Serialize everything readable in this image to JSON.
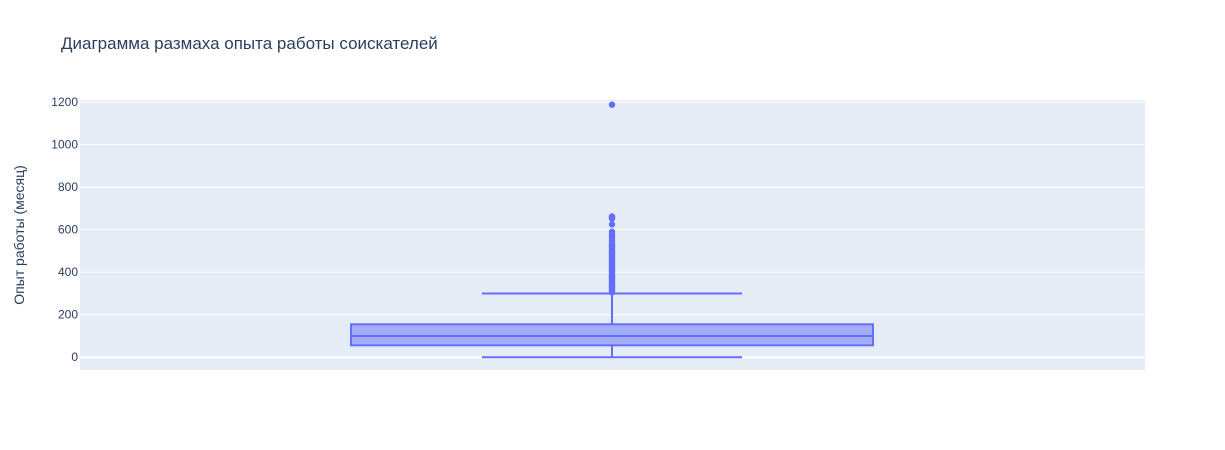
{
  "chart_data": {
    "type": "box",
    "title": "Диаграмма размаха опыта работы соискателей",
    "xlabel": "",
    "ylabel": "Опыт работы (месяц)",
    "ylim": [
      -60,
      1210
    ],
    "yticks": [
      0,
      200,
      400,
      600,
      800,
      1000,
      1200
    ],
    "grid": true,
    "colors": {
      "box": "#636efa",
      "box_fill": "rgba(99,110,250,0.5)",
      "plot_bg": "#e5ecf6",
      "grid": "#ffffff"
    },
    "box": {
      "min": 0,
      "q1": 56,
      "median": 100,
      "q3": 155,
      "max": 300,
      "outliers": [
        305,
        310,
        315,
        320,
        325,
        330,
        335,
        340,
        345,
        350,
        355,
        360,
        365,
        370,
        375,
        380,
        385,
        390,
        395,
        400,
        405,
        410,
        415,
        420,
        425,
        430,
        435,
        440,
        445,
        450,
        455,
        460,
        465,
        470,
        475,
        480,
        485,
        490,
        495,
        500,
        505,
        510,
        515,
        520,
        525,
        530,
        540,
        550,
        560,
        570,
        580,
        590,
        625,
        652,
        657,
        662,
        1188
      ]
    }
  }
}
